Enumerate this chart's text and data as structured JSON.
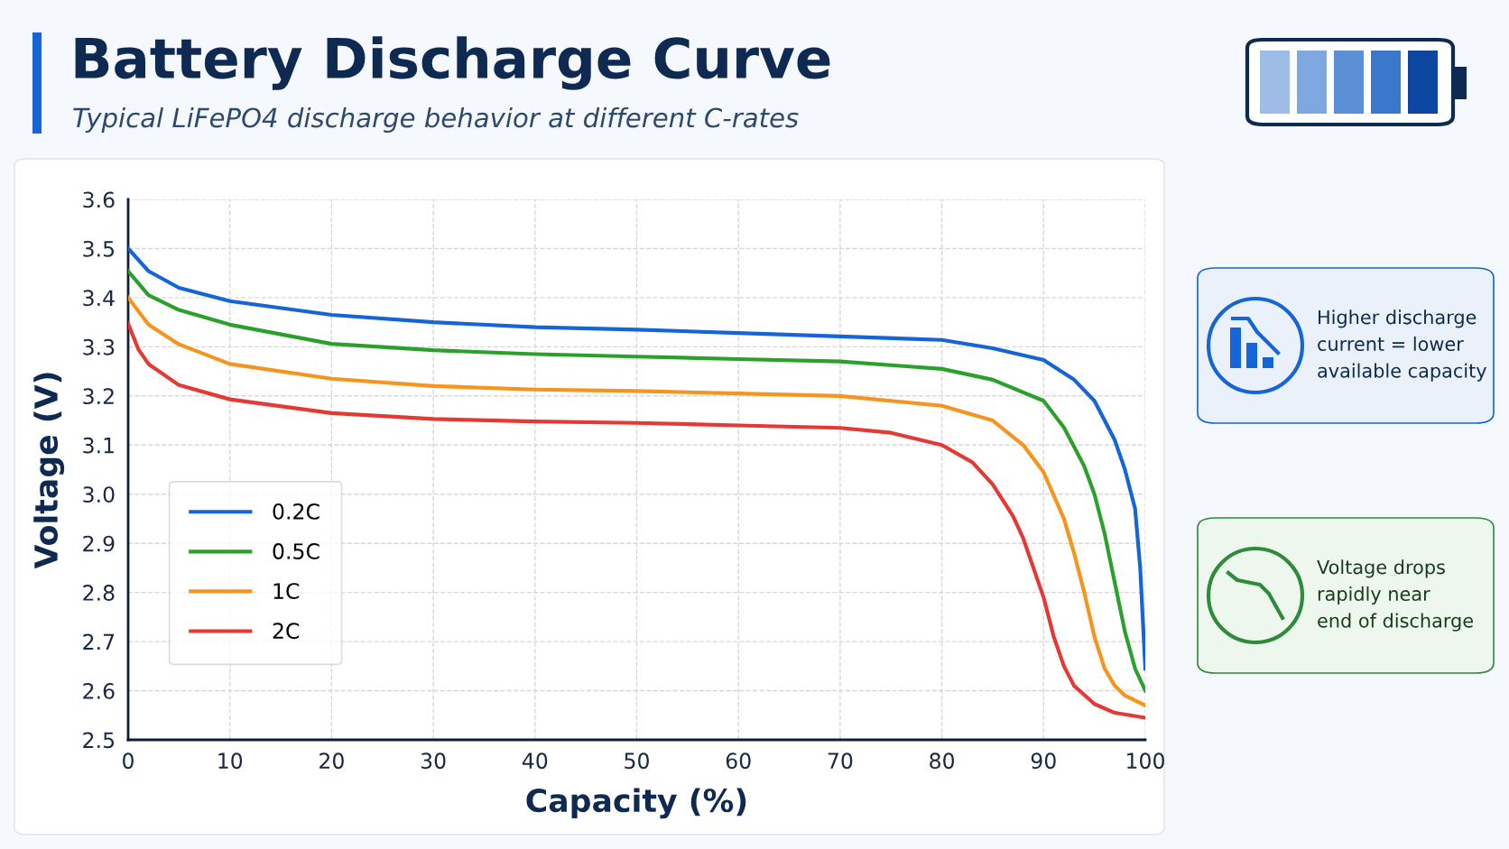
{
  "chart_data": {
    "type": "line",
    "title": "Battery Discharge Curve",
    "subtitle": "Typical LiFePO4 discharge behavior at different C-rates",
    "xlabel": "Capacity (%)",
    "ylabel": "Voltage (V)",
    "xlim": [
      0,
      100
    ],
    "xticks": [
      0,
      10,
      20,
      30,
      40,
      50,
      60,
      70,
      80,
      90,
      100
    ],
    "ylim": [
      2.5,
      3.6
    ],
    "yticks": [
      {
        "value": 2.5,
        "label": "2.5"
      },
      {
        "value": 2.6,
        "label": "2.6"
      },
      {
        "value": 2.7,
        "label": "2.7"
      },
      {
        "value": 2.8,
        "label": "2.8"
      },
      {
        "value": 2.9,
        "label": "2.9"
      },
      {
        "value": 3.0,
        "label": "3.0"
      },
      {
        "value": 3.1,
        "label": "3.1"
      },
      {
        "value": 3.2,
        "label": "3.2"
      },
      {
        "value": 3.3,
        "label": "3.3"
      },
      {
        "value": 3.4,
        "label": "3.4"
      },
      {
        "value": 3.5,
        "label": "3.5"
      },
      {
        "value": 3.6,
        "label": "3.6"
      }
    ],
    "grid": true,
    "legend": "bottom left",
    "marker": "none",
    "line_style": "solid",
    "series": [
      {
        "name": "0.2C",
        "color": "#1565d8",
        "x": [
          0,
          2,
          5,
          10,
          20,
          30,
          40,
          50,
          60,
          70,
          80,
          85,
          90,
          93,
          95,
          97,
          98,
          99,
          99.5,
          100
        ],
        "values": [
          3.5,
          3.454,
          3.42,
          3.393,
          3.365,
          3.35,
          3.34,
          3.335,
          3.328,
          3.321,
          3.314,
          3.297,
          3.273,
          3.233,
          3.19,
          3.11,
          3.05,
          2.97,
          2.85,
          2.645
        ]
      },
      {
        "name": "0.5C",
        "color": "#2ca02c",
        "x": [
          0,
          2,
          5,
          10,
          20,
          30,
          40,
          50,
          60,
          70,
          80,
          85,
          90,
          92,
          94,
          95,
          96,
          97,
          98,
          99,
          100
        ],
        "values": [
          3.454,
          3.405,
          3.375,
          3.345,
          3.306,
          3.293,
          3.285,
          3.28,
          3.275,
          3.27,
          3.255,
          3.233,
          3.19,
          3.136,
          3.057,
          3.0,
          2.92,
          2.82,
          2.72,
          2.645,
          2.6
        ]
      },
      {
        "name": "1C",
        "color": "#f7941d",
        "x": [
          0,
          2,
          5,
          10,
          20,
          30,
          40,
          50,
          60,
          70,
          80,
          85,
          88,
          90,
          92,
          93,
          94,
          95,
          96,
          97,
          98,
          100
        ],
        "values": [
          3.4,
          3.345,
          3.305,
          3.265,
          3.235,
          3.22,
          3.213,
          3.21,
          3.205,
          3.2,
          3.18,
          3.15,
          3.1,
          3.045,
          2.95,
          2.88,
          2.8,
          2.71,
          2.645,
          2.61,
          2.59,
          2.57
        ]
      },
      {
        "name": "2C",
        "color": "#e53935",
        "x": [
          0,
          1,
          2,
          5,
          10,
          20,
          30,
          40,
          50,
          60,
          70,
          75,
          80,
          83,
          85,
          87,
          88,
          89,
          90,
          91,
          92,
          93,
          95,
          97,
          100
        ],
        "values": [
          3.347,
          3.295,
          3.265,
          3.222,
          3.193,
          3.165,
          3.153,
          3.148,
          3.145,
          3.14,
          3.135,
          3.125,
          3.1,
          3.065,
          3.02,
          2.955,
          2.91,
          2.85,
          2.79,
          2.71,
          2.65,
          2.61,
          2.573,
          2.555,
          2.545
        ]
      }
    ],
    "annotations": [
      "Higher discharge\ncurrent = lower\navailable capacity",
      "Voltage drops\nrapidly near\nend of discharge"
    ]
  }
}
